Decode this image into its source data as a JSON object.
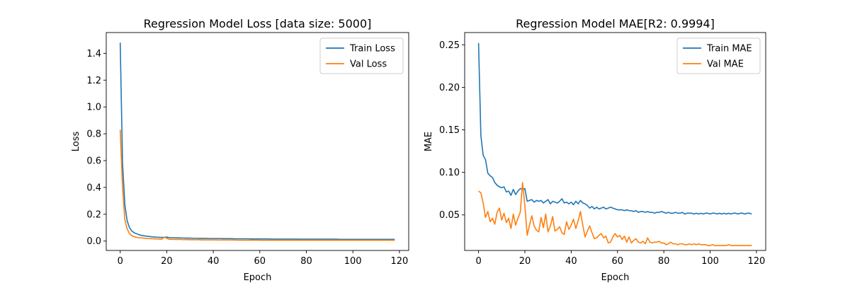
{
  "chart_data": [
    {
      "type": "line",
      "title": "Regression Model Loss [data size: 5000]",
      "xlabel": "Epoch",
      "ylabel": "Loss",
      "xlim": [
        -6,
        124
      ],
      "ylim": [
        -0.07,
        1.555
      ],
      "xticks": [
        0,
        20,
        40,
        60,
        80,
        100,
        120
      ],
      "yticks": [
        0.0,
        0.2,
        0.4,
        0.6,
        0.8,
        1.0,
        1.2,
        1.4
      ],
      "ytick_labels": [
        "0.0",
        "0.2",
        "0.4",
        "0.6",
        "0.8",
        "1.0",
        "1.2",
        "1.4"
      ],
      "legend_position": "upper right",
      "series": [
        {
          "name": "Train Loss",
          "color": "#1f77b4",
          "values": [
            1.48,
            0.58,
            0.27,
            0.15,
            0.1,
            0.075,
            0.062,
            0.055,
            0.048,
            0.043,
            0.04,
            0.037,
            0.035,
            0.033,
            0.031,
            0.03,
            0.029,
            0.028,
            0.027,
            0.028,
            0.03,
            0.026,
            0.025,
            0.025,
            0.024,
            0.024,
            0.023,
            0.023,
            0.022,
            0.022,
            0.022,
            0.021,
            0.021,
            0.021,
            0.02,
            0.02,
            0.02,
            0.02,
            0.019,
            0.019,
            0.019,
            0.019,
            0.019,
            0.019,
            0.018,
            0.018,
            0.018,
            0.018,
            0.018,
            0.017,
            0.017,
            0.017,
            0.017,
            0.017,
            0.017,
            0.017,
            0.016,
            0.016,
            0.016,
            0.016,
            0.016,
            0.016,
            0.016,
            0.016,
            0.016,
            0.015,
            0.015,
            0.015,
            0.015,
            0.015,
            0.015,
            0.015,
            0.015,
            0.015,
            0.015,
            0.015,
            0.015,
            0.014,
            0.014,
            0.014,
            0.014,
            0.014,
            0.014,
            0.014,
            0.014,
            0.014,
            0.014,
            0.014,
            0.014,
            0.014,
            0.014,
            0.014,
            0.014,
            0.014,
            0.013,
            0.013,
            0.013,
            0.013,
            0.013,
            0.013,
            0.013,
            0.013,
            0.013,
            0.013,
            0.013,
            0.013,
            0.013,
            0.013,
            0.013,
            0.013,
            0.013,
            0.013,
            0.013,
            0.013,
            0.013,
            0.013,
            0.013,
            0.013,
            0.013
          ]
        },
        {
          "name": "Val Loss",
          "color": "#ff7f0e",
          "values": [
            0.83,
            0.4,
            0.16,
            0.09,
            0.055,
            0.04,
            0.032,
            0.028,
            0.025,
            0.024,
            0.022,
            0.02,
            0.019,
            0.018,
            0.017,
            0.016,
            0.016,
            0.015,
            0.015,
            0.03,
            0.02,
            0.014,
            0.013,
            0.013,
            0.012,
            0.012,
            0.012,
            0.011,
            0.011,
            0.011,
            0.01,
            0.01,
            0.01,
            0.01,
            0.01,
            0.009,
            0.009,
            0.009,
            0.009,
            0.009,
            0.009,
            0.009,
            0.008,
            0.008,
            0.008,
            0.008,
            0.008,
            0.008,
            0.008,
            0.008,
            0.007,
            0.007,
            0.007,
            0.007,
            0.007,
            0.007,
            0.007,
            0.007,
            0.007,
            0.007,
            0.006,
            0.006,
            0.006,
            0.006,
            0.006,
            0.006,
            0.006,
            0.006,
            0.006,
            0.006,
            0.006,
            0.006,
            0.006,
            0.006,
            0.006,
            0.006,
            0.006,
            0.006,
            0.006,
            0.006,
            0.006,
            0.006,
            0.006,
            0.006,
            0.006,
            0.006,
            0.006,
            0.006,
            0.006,
            0.006,
            0.006,
            0.006,
            0.006,
            0.006,
            0.006,
            0.006,
            0.006,
            0.006,
            0.006,
            0.006,
            0.006,
            0.006,
            0.006,
            0.006,
            0.006,
            0.006,
            0.006,
            0.006,
            0.006,
            0.006,
            0.006,
            0.006,
            0.006,
            0.006,
            0.006,
            0.006,
            0.006,
            0.006,
            0.006
          ]
        }
      ]
    },
    {
      "type": "line",
      "title": "Regression Model MAE[R2: 0.9994]",
      "xlabel": "Epoch",
      "ylabel": "MAE",
      "xlim": [
        -6,
        124
      ],
      "ylim": [
        0.0082,
        0.2644
      ],
      "xticks": [
        0,
        20,
        40,
        60,
        80,
        100,
        120
      ],
      "yticks": [
        0.05,
        0.1,
        0.15,
        0.2,
        0.25
      ],
      "ytick_labels": [
        "0.05",
        "0.10",
        "0.15",
        "0.20",
        "0.25"
      ],
      "legend_position": "upper right",
      "series": [
        {
          "name": "Train MAE",
          "color": "#1f77b4",
          "values": [
            0.252,
            0.143,
            0.12,
            0.115,
            0.099,
            0.096,
            0.094,
            0.088,
            0.085,
            0.083,
            0.082,
            0.083,
            0.077,
            0.078,
            0.073,
            0.08,
            0.074,
            0.078,
            0.081,
            0.08,
            0.081,
            0.066,
            0.067,
            0.068,
            0.065,
            0.067,
            0.066,
            0.067,
            0.064,
            0.066,
            0.068,
            0.063,
            0.066,
            0.065,
            0.064,
            0.066,
            0.069,
            0.064,
            0.065,
            0.063,
            0.065,
            0.062,
            0.066,
            0.063,
            0.067,
            0.064,
            0.063,
            0.061,
            0.058,
            0.06,
            0.057,
            0.059,
            0.057,
            0.058,
            0.059,
            0.057,
            0.058,
            0.059,
            0.058,
            0.057,
            0.056,
            0.056,
            0.056,
            0.055,
            0.056,
            0.055,
            0.055,
            0.054,
            0.055,
            0.053,
            0.054,
            0.054,
            0.053,
            0.054,
            0.053,
            0.053,
            0.052,
            0.053,
            0.053,
            0.054,
            0.053,
            0.052,
            0.053,
            0.052,
            0.052,
            0.053,
            0.052,
            0.052,
            0.053,
            0.051,
            0.052,
            0.052,
            0.052,
            0.051,
            0.052,
            0.051,
            0.052,
            0.051,
            0.052,
            0.052,
            0.051,
            0.052,
            0.052,
            0.051,
            0.052,
            0.051,
            0.052,
            0.051,
            0.052,
            0.051,
            0.052,
            0.052,
            0.051,
            0.052,
            0.052,
            0.051,
            0.052,
            0.052,
            0.051
          ]
        },
        {
          "name": "Val MAE",
          "color": "#ff7f0e",
          "values": [
            0.078,
            0.076,
            0.064,
            0.047,
            0.054,
            0.042,
            0.046,
            0.039,
            0.053,
            0.058,
            0.044,
            0.052,
            0.041,
            0.046,
            0.034,
            0.051,
            0.038,
            0.046,
            0.053,
            0.088,
            0.061,
            0.026,
            0.038,
            0.049,
            0.037,
            0.032,
            0.03,
            0.047,
            0.035,
            0.051,
            0.03,
            0.037,
            0.048,
            0.031,
            0.033,
            0.036,
            0.029,
            0.027,
            0.042,
            0.033,
            0.038,
            0.045,
            0.034,
            0.043,
            0.054,
            0.038,
            0.024,
            0.031,
            0.037,
            0.029,
            0.022,
            0.023,
            0.026,
            0.028,
            0.023,
            0.025,
            0.017,
            0.018,
            0.024,
            0.028,
            0.024,
            0.026,
            0.021,
            0.025,
            0.018,
            0.024,
            0.017,
            0.02,
            0.022,
            0.018,
            0.017,
            0.019,
            0.016,
            0.023,
            0.018,
            0.017,
            0.018,
            0.018,
            0.019,
            0.017,
            0.017,
            0.015,
            0.016,
            0.018,
            0.016,
            0.016,
            0.015,
            0.016,
            0.016,
            0.015,
            0.015,
            0.016,
            0.015,
            0.016,
            0.015,
            0.016,
            0.015,
            0.015,
            0.015,
            0.014,
            0.014,
            0.015,
            0.014,
            0.014,
            0.014,
            0.014,
            0.014,
            0.014,
            0.015,
            0.014,
            0.014,
            0.014,
            0.014,
            0.014,
            0.014,
            0.014,
            0.014,
            0.014,
            0.014
          ]
        }
      ]
    }
  ]
}
